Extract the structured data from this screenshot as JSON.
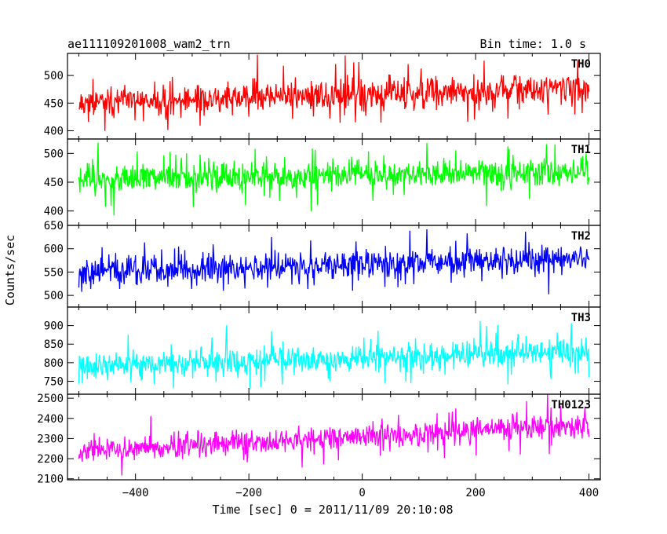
{
  "header": {
    "title_left": "ae111109201008_wam2_trn",
    "title_right": "Bin time: 1.0 s"
  },
  "chart_data": {
    "type": "line",
    "title": "ae111109201008_wam2_trn",
    "subtitle": "Bin time: 1.0 s",
    "xlabel": "Time [sec] 0 = 2011/11/09 20:10:08",
    "ylabel": "Counts/sec",
    "xlim": [
      -520,
      420
    ],
    "x_ticks": [
      -400,
      -200,
      0,
      200,
      400
    ],
    "x_tick_labels": [
      "−400",
      "−200",
      "0",
      "200",
      "400"
    ],
    "x_range_data": [
      -500,
      400
    ],
    "grid": false,
    "legend": "band labels at top-right of each panel",
    "panels": [
      {
        "name": "TH0",
        "color": "#ff0000",
        "ylim": [
          385,
          540
        ],
        "y_ticks": [
          400,
          450,
          500
        ],
        "mean_start": 450,
        "mean_end": 478,
        "noise": 26,
        "seed": 11
      },
      {
        "name": "TH1",
        "color": "#00ff00",
        "ylim": [
          375,
          525
        ],
        "y_ticks": [
          400,
          450,
          500
        ],
        "mean_start": 455,
        "mean_end": 470,
        "noise": 24,
        "seed": 23
      },
      {
        "name": "TH2",
        "color": "#0000ff",
        "ylim": [
          475,
          650
        ],
        "y_ticks": [
          500,
          550,
          600,
          650
        ],
        "mean_start": 550,
        "mean_end": 580,
        "noise": 29,
        "seed": 37
      },
      {
        "name": "TH3",
        "color": "#00ffff",
        "ylim": [
          715,
          950
        ],
        "y_ticks": [
          750,
          800,
          850,
          900
        ],
        "mean_start": 790,
        "mean_end": 830,
        "noise": 34,
        "seed": 41
      },
      {
        "name": "TH0123",
        "color": "#ff00ff",
        "ylim": [
          2095,
          2520
        ],
        "y_ticks": [
          2100,
          2200,
          2300,
          2400,
          2500
        ],
        "mean_start": 2240,
        "mean_end": 2370,
        "noise": 58,
        "seed": 53
      }
    ]
  }
}
